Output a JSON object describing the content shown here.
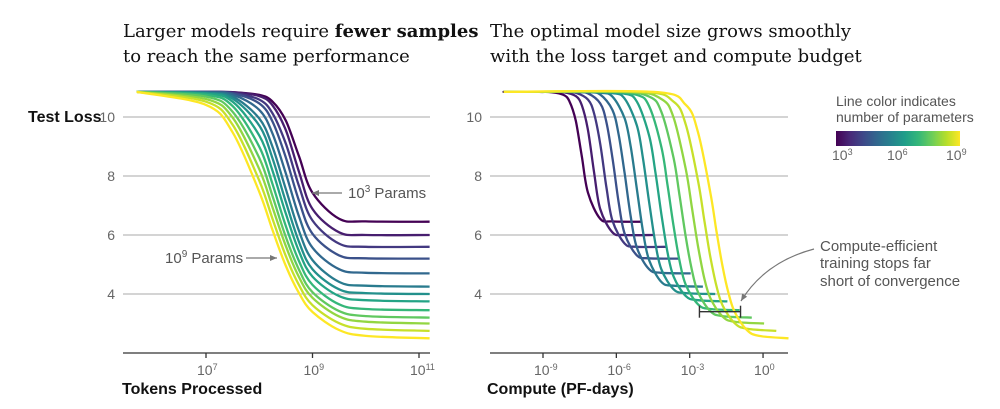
{
  "colors": {
    "viridis": [
      "#440154",
      "#482878",
      "#3e4989",
      "#31688e",
      "#26828e",
      "#1f9e89",
      "#35b779",
      "#6ece58",
      "#b5de2b",
      "#fde725"
    ],
    "grid": "#aaaaaa",
    "annotation": "#555555"
  },
  "legend": {
    "line1": "Line color indicates",
    "line2": "number of parameters",
    "colormap": "viridis",
    "ticks": [
      {
        "base": "10",
        "exp": "3"
      },
      {
        "base": "10",
        "exp": "6"
      },
      {
        "base": "10",
        "exp": "9"
      }
    ]
  },
  "chart_data": [
    {
      "type": "line",
      "title_line1_pre": "Larger models require ",
      "title_line1_bold": "fewer samples",
      "title_line2": "to reach the same performance",
      "ylabel": "Test Loss",
      "xlabel": "Tokens Processed",
      "xscale": "log",
      "xlim": [
        300000.0,
        180000000000.0
      ],
      "ylim": [
        2,
        11
      ],
      "grid": "horizontal",
      "yticks": [
        10,
        8,
        6,
        4
      ],
      "xticks": [
        {
          "value": 10000000.0,
          "base": "10",
          "exp": "7"
        },
        {
          "value": 1000000000.0,
          "base": "10",
          "exp": "9"
        },
        {
          "value": 100000000000.0,
          "base": "10",
          "exp": "11"
        }
      ],
      "annotations": [
        {
          "base": "10",
          "exp": "3",
          "text": " Params",
          "target_params": 1000.0
        },
        {
          "base": "10",
          "exp": "9",
          "text": " Params",
          "target_params": 1000000000.0
        }
      ],
      "x": [
        500000.0,
        10000000.0,
        31600000.0,
        100000000.0,
        178000000.0,
        316000000.0,
        562000000.0,
        1000000000.0,
        3160000000.0,
        10000000000.0,
        158000000000.0
      ],
      "series": [
        {
          "params": 1000.0,
          "y": [
            10.85,
            10.85,
            10.84,
            10.75,
            10.52,
            9.87,
            8.65,
            7.43,
            6.55,
            6.46,
            6.45
          ]
        },
        {
          "params": 3160.0,
          "y": [
            10.85,
            10.85,
            10.84,
            10.71,
            10.39,
            9.55,
            8.12,
            6.88,
            6.09,
            6.0,
            6.0
          ]
        },
        {
          "params": 10000.0,
          "y": [
            10.85,
            10.85,
            10.82,
            10.59,
            10.12,
            9.09,
            7.64,
            6.49,
            5.71,
            5.6,
            5.6
          ]
        },
        {
          "params": 31600.0,
          "y": [
            10.85,
            10.85,
            10.8,
            10.46,
            9.84,
            8.62,
            7.14,
            6.04,
            5.31,
            5.21,
            5.2
          ]
        },
        {
          "params": 100000.0,
          "y": [
            10.85,
            10.84,
            10.76,
            10.24,
            9.43,
            8.08,
            6.61,
            5.57,
            4.84,
            4.72,
            4.7
          ]
        },
        {
          "params": 316000.0,
          "y": [
            10.85,
            10.82,
            10.69,
            9.95,
            8.98,
            7.55,
            6.12,
            5.15,
            4.41,
            4.28,
            4.25
          ]
        },
        {
          "params": 1000000.0,
          "y": [
            10.85,
            10.81,
            10.62,
            9.71,
            8.59,
            7.12,
            5.75,
            4.84,
            4.16,
            4.03,
            4.0
          ]
        },
        {
          "params": 3160000.0,
          "y": [
            10.85,
            10.79,
            10.52,
            9.37,
            8.17,
            6.72,
            5.43,
            4.59,
            3.93,
            3.79,
            3.75
          ]
        },
        {
          "params": 10000000.0,
          "y": [
            10.85,
            10.75,
            10.37,
            8.99,
            7.72,
            6.3,
            5.1,
            4.31,
            3.65,
            3.49,
            3.45
          ]
        },
        {
          "params": 31600000.0,
          "y": [
            10.85,
            10.69,
            10.18,
            8.61,
            7.31,
            5.93,
            4.81,
            4.06,
            3.42,
            3.25,
            3.2
          ]
        },
        {
          "params": 100000000.0,
          "y": [
            10.85,
            10.61,
            9.98,
            8.23,
            6.93,
            5.62,
            4.56,
            3.87,
            3.24,
            3.06,
            3.0
          ]
        },
        {
          "params": 316000000.0,
          "y": [
            10.85,
            10.52,
            9.74,
            7.84,
            6.54,
            5.28,
            4.29,
            3.62,
            3.01,
            2.82,
            2.75
          ]
        },
        {
          "params": 1000000000.0,
          "y": [
            10.85,
            10.41,
            9.48,
            7.46,
            6.16,
            4.95,
            4.02,
            3.39,
            2.78,
            2.58,
            2.5
          ]
        }
      ]
    },
    {
      "type": "line",
      "title_line1": "The optimal model size grows smoothly",
      "title_line2": "with the loss target and compute budget",
      "xlabel": "Compute (PF-days)",
      "xscale": "log",
      "xlim": [
        1e-11,
        20.0
      ],
      "ylim": [
        2,
        11
      ],
      "grid": "horizontal",
      "yticks": [
        10,
        8,
        6,
        4
      ],
      "xticks": [
        {
          "value": 1e-09,
          "base": "10",
          "exp": "-9"
        },
        {
          "value": 1e-06,
          "base": "10",
          "exp": "-6"
        },
        {
          "value": 0.001,
          "base": "10",
          "exp": "-3"
        },
        {
          "value": 1,
          "base": "10",
          "exp": "0"
        }
      ],
      "annotation": {
        "line1": "Compute-efficient",
        "line2": "training stops far",
        "line3": "short of convergence",
        "bracket_x": [
          0.0025,
          0.12
        ],
        "bracket_y": 3.4
      },
      "series": [
        {
          "params": 1000.0,
          "x": [
            2.5e-11,
            3.47e-11,
            6.92e-10,
            2.19e-09,
            6.92e-09,
            1.23e-08,
            2.19e-08,
            3.89e-08,
            6.92e-08,
            2.19e-07,
            6.92e-07,
            1.1e-05
          ],
          "y": [
            10.85,
            10.85,
            10.85,
            10.84,
            10.75,
            10.52,
            9.87,
            8.65,
            7.43,
            6.55,
            6.46,
            6.45
          ]
        },
        {
          "params": 3160.0,
          "x": [
            2.5e-11,
            1.1e-10,
            2.19e-09,
            6.92e-09,
            2.19e-08,
            3.89e-08,
            6.92e-08,
            1.23e-07,
            2.19e-07,
            6.92e-07,
            2.19e-06,
            3.47e-05
          ],
          "y": [
            10.85,
            10.85,
            10.85,
            10.84,
            10.71,
            10.39,
            9.55,
            8.12,
            6.88,
            6.09,
            6.0,
            6.0
          ]
        },
        {
          "params": 10000.0,
          "x": [
            2.5e-11,
            3.47e-10,
            6.92e-09,
            2.19e-08,
            6.92e-08,
            1.23e-07,
            2.19e-07,
            3.89e-07,
            6.92e-07,
            2.19e-06,
            6.92e-06,
            0.00011
          ],
          "y": [
            10.85,
            10.85,
            10.85,
            10.82,
            10.59,
            10.12,
            9.09,
            7.64,
            6.49,
            5.71,
            5.6,
            5.6
          ]
        },
        {
          "params": 31600.0,
          "x": [
            2.5e-11,
            1.1e-09,
            2.19e-08,
            6.92e-08,
            2.19e-07,
            3.89e-07,
            6.92e-07,
            1.23e-06,
            2.19e-06,
            6.92e-06,
            2.19e-05,
            0.000347
          ],
          "y": [
            10.85,
            10.85,
            10.85,
            10.8,
            10.46,
            9.84,
            8.62,
            7.14,
            6.04,
            5.31,
            5.21,
            5.2
          ]
        },
        {
          "params": 100000.0,
          "x": [
            2.5e-11,
            3.47e-09,
            6.92e-08,
            2.19e-07,
            6.92e-07,
            1.23e-06,
            2.19e-06,
            3.89e-06,
            6.92e-06,
            2.19e-05,
            6.92e-05,
            0.0011
          ],
          "y": [
            10.85,
            10.85,
            10.84,
            10.76,
            10.24,
            9.43,
            8.08,
            6.61,
            5.57,
            4.84,
            4.72,
            4.7
          ]
        },
        {
          "params": 316000.0,
          "x": [
            2.5e-11,
            1.1e-08,
            2.19e-07,
            6.92e-07,
            2.19e-06,
            3.89e-06,
            6.92e-06,
            1.23e-05,
            2.19e-05,
            6.92e-05,
            0.000219,
            0.00347
          ],
          "y": [
            10.85,
            10.85,
            10.82,
            10.69,
            9.95,
            8.98,
            7.55,
            6.12,
            5.15,
            4.41,
            4.28,
            4.25
          ]
        },
        {
          "params": 1000000.0,
          "x": [
            2.5e-11,
            3.47e-08,
            6.92e-07,
            2.19e-06,
            6.92e-06,
            1.23e-05,
            2.19e-05,
            3.89e-05,
            6.92e-05,
            0.000219,
            0.000692,
            0.011
          ],
          "y": [
            10.85,
            10.85,
            10.81,
            10.62,
            9.71,
            8.59,
            7.12,
            5.75,
            4.84,
            4.16,
            4.03,
            4.0
          ]
        },
        {
          "params": 3160000.0,
          "x": [
            2.5e-11,
            1.1e-07,
            2.19e-06,
            6.92e-06,
            2.19e-05,
            3.89e-05,
            6.92e-05,
            0.000123,
            0.000219,
            0.000692,
            0.00219,
            0.0347
          ],
          "y": [
            10.85,
            10.85,
            10.79,
            10.52,
            9.37,
            8.17,
            6.72,
            5.43,
            4.59,
            3.93,
            3.79,
            3.75
          ]
        },
        {
          "params": 10000000.0,
          "x": [
            2.5e-11,
            3.47e-07,
            6.92e-06,
            2.19e-05,
            6.92e-05,
            0.000123,
            0.000219,
            0.000389,
            0.000692,
            0.00219,
            0.00692,
            0.11
          ],
          "y": [
            10.85,
            10.85,
            10.75,
            10.37,
            8.99,
            7.72,
            6.3,
            5.1,
            4.31,
            3.65,
            3.49,
            3.45
          ]
        },
        {
          "params": 31600000.0,
          "x": [
            2.5e-11,
            1.1e-06,
            2.19e-05,
            6.92e-05,
            0.000219,
            0.000389,
            0.000692,
            0.00123,
            0.00219,
            0.00692,
            0.0219,
            0.347
          ],
          "y": [
            10.85,
            10.85,
            10.69,
            10.18,
            8.61,
            7.31,
            5.93,
            4.81,
            4.06,
            3.42,
            3.25,
            3.2
          ]
        },
        {
          "params": 100000000.0,
          "x": [
            2.5e-11,
            3.47e-06,
            6.92e-05,
            0.000219,
            0.000692,
            0.00123,
            0.00219,
            0.00389,
            0.00692,
            0.0219,
            0.0692,
            1.1
          ],
          "y": [
            10.85,
            10.85,
            10.61,
            9.98,
            8.23,
            6.93,
            5.62,
            4.56,
            3.87,
            3.24,
            3.06,
            3.0
          ]
        },
        {
          "params": 316000000.0,
          "x": [
            2.5e-11,
            1.1e-05,
            0.000219,
            0.000692,
            0.00219,
            0.00389,
            0.00692,
            0.0123,
            0.0219,
            0.0692,
            0.219,
            3.47
          ],
          "y": [
            10.85,
            10.85,
            10.52,
            9.74,
            7.84,
            6.54,
            5.28,
            4.29,
            3.62,
            3.01,
            2.82,
            2.75
          ]
        },
        {
          "params": 1000000000.0,
          "x": [
            2.5e-11,
            3.47e-05,
            0.000692,
            0.00219,
            0.00692,
            0.0123,
            0.0219,
            0.0389,
            0.0692,
            0.219,
            0.692,
            11.0
          ],
          "y": [
            10.85,
            10.85,
            10.41,
            9.48,
            7.46,
            6.16,
            4.95,
            4.02,
            3.39,
            2.78,
            2.58,
            2.5
          ]
        }
      ]
    }
  ]
}
